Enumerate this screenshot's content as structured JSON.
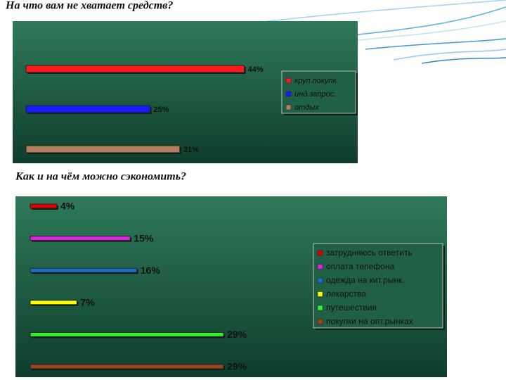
{
  "chart_data": [
    {
      "type": "bar",
      "horizontal": true,
      "title": "На что вам не хватает средств?",
      "xlim": [
        0,
        50
      ],
      "legend": "right",
      "series": [
        {
          "name": "круп.покупк.",
          "color": "#ff1a1a",
          "values": [
            44
          ],
          "value_labels": [
            "44%"
          ]
        },
        {
          "name": "инд.запрос.",
          "color": "#1a1aff",
          "values": [
            25
          ],
          "value_labels": [
            "25%"
          ]
        },
        {
          "name": "отдых",
          "color": "#b08060",
          "values": [
            31
          ],
          "value_labels": [
            "31%"
          ]
        }
      ]
    },
    {
      "type": "bar",
      "horizontal": true,
      "title": "Как и на чём можно сэкономить?",
      "xlim": [
        0,
        35
      ],
      "legend": "right",
      "series": [
        {
          "name": "затрудняюсь ответить",
          "color": "#e00000",
          "values": [
            4
          ],
          "value_labels": [
            "4%"
          ]
        },
        {
          "name": "оплата телефона",
          "color": "#e020e0",
          "values": [
            15
          ],
          "value_labels": [
            "15%"
          ]
        },
        {
          "name": "одежда на кит.рынк.",
          "color": "#1a6fc4",
          "values": [
            16
          ],
          "value_labels": [
            "16%"
          ]
        },
        {
          "name": "лекарства",
          "color": "#ffff00",
          "values": [
            7
          ],
          "value_labels": [
            "7%"
          ]
        },
        {
          "name": "путешествия",
          "color": "#33ee33",
          "values": [
            29
          ],
          "value_labels": [
            "29%"
          ]
        },
        {
          "name": "покупки на опт.рынках",
          "color": "#a0431e",
          "values": [
            29
          ],
          "value_labels": [
            "29%"
          ]
        }
      ]
    }
  ]
}
